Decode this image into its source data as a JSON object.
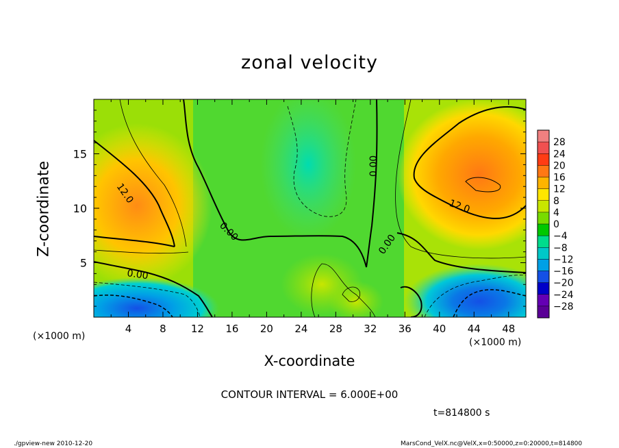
{
  "chart_data": {
    "type": "heatmap",
    "title": "zonal velocity",
    "xlabel": "X-coordinate",
    "ylabel": "Z-coordinate",
    "x_unit_left": "(×1000 m)",
    "x_unit_right": "(×1000 m)",
    "xlim": [
      0,
      50
    ],
    "ylim": [
      0,
      20
    ],
    "xticks": [
      "4",
      "8",
      "12",
      "16",
      "20",
      "24",
      "28",
      "32",
      "36",
      "40",
      "44",
      "48"
    ],
    "yticks": [
      "5",
      "10",
      "15"
    ],
    "colorbar": {
      "labels": [
        "28",
        "24",
        "20",
        "16",
        "12",
        "8",
        "4",
        "0",
        "−4",
        "−8",
        "−12",
        "−16",
        "−20",
        "−24",
        "−28"
      ],
      "colors": [
        "#f08080",
        "#f05050",
        "#ff3c14",
        "#ff7814",
        "#ffb400",
        "#ffe600",
        "#c8e600",
        "#78dc00",
        "#00c800",
        "#00dc8c",
        "#00c8c8",
        "#00a0e6",
        "#1450e6",
        "#0000c8",
        "#6400b4",
        "#5a0096"
      ]
    },
    "contour_labels": [
      "12.0",
      "0.00",
      "0.00",
      "0.00",
      "0.00",
      "12.0"
    ],
    "contour_interval": "CONTOUR INTERVAL = 6.000E+00",
    "time": "t=814800 s"
  },
  "footer": {
    "left": "./gpview-new  2010-12-20",
    "right": "MarsCond_VelX.nc@VelX,x=0:50000,z=0:20000,t=814800"
  }
}
